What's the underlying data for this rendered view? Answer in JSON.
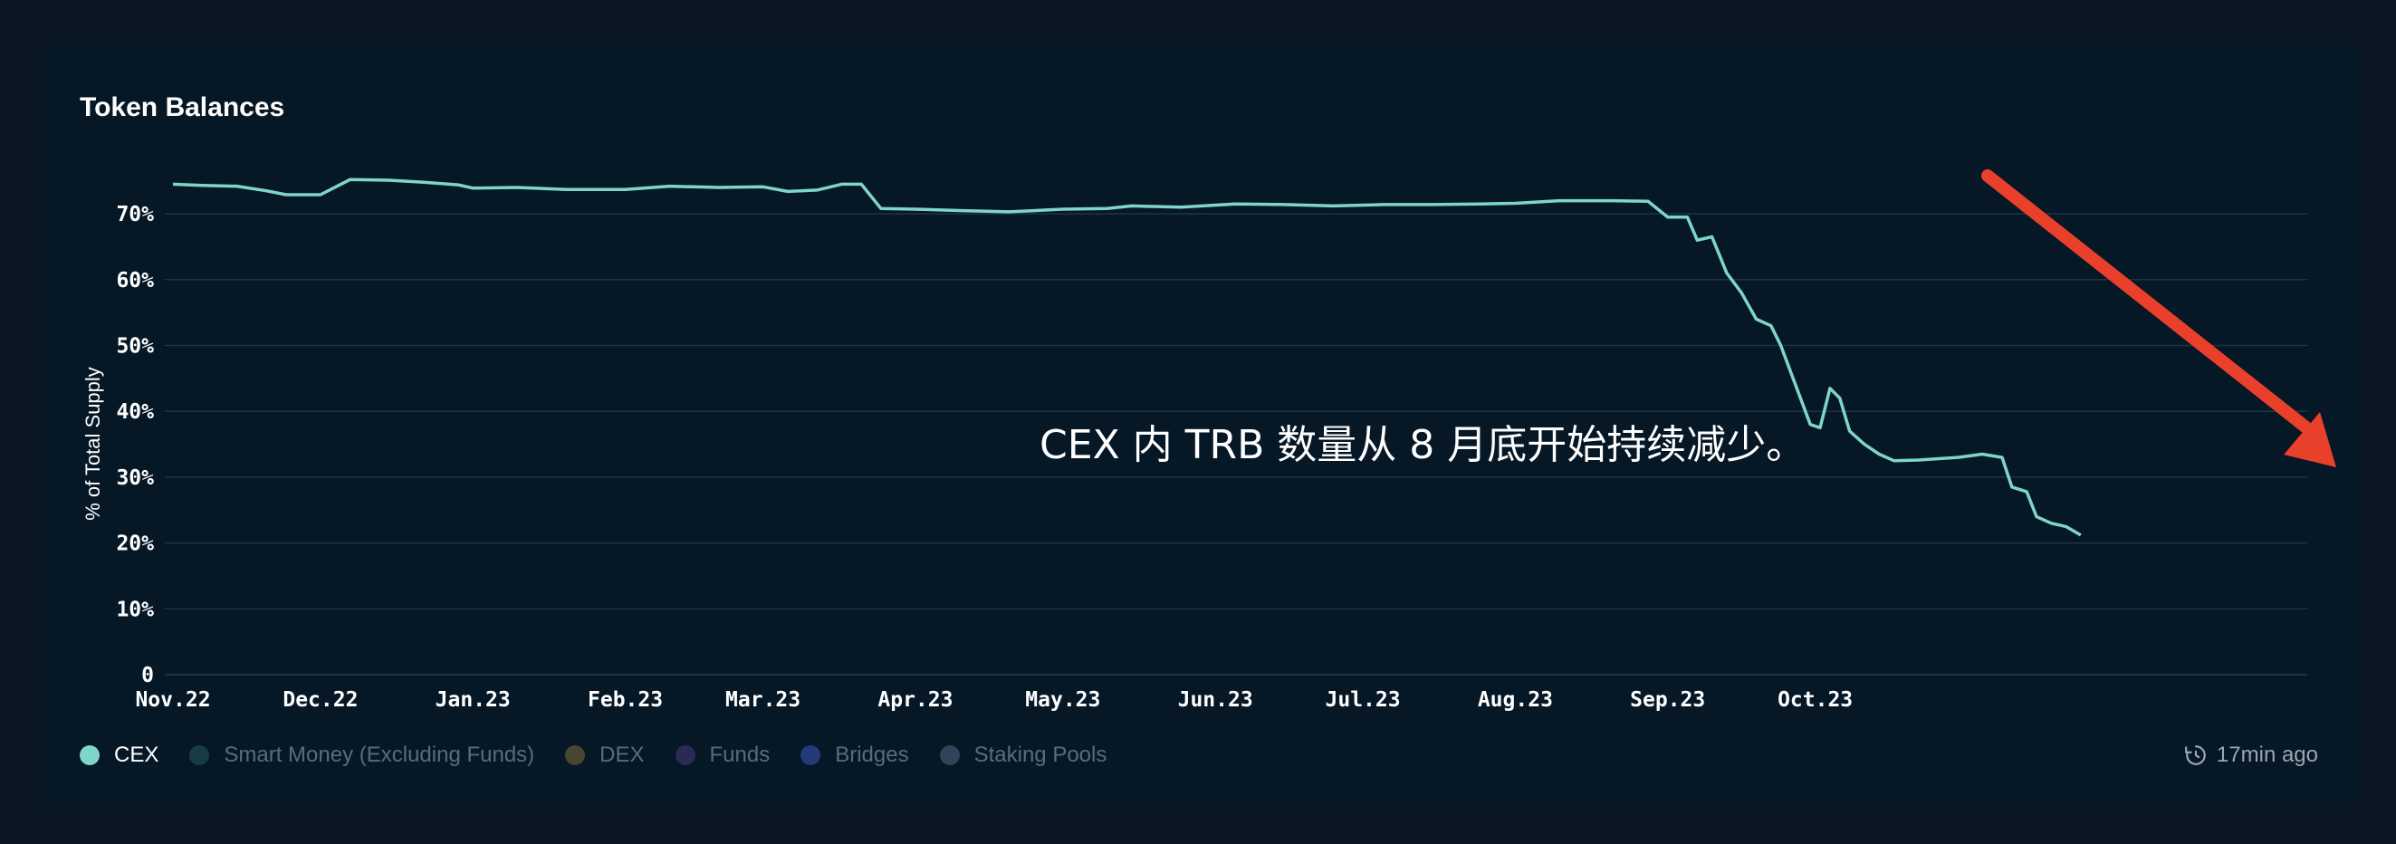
{
  "card": {
    "title": "Token Balances",
    "updated": "17min ago",
    "updated_icon": "clock-history-icon"
  },
  "annotation": "CEX 内 TRB 数量从 8 月底开始持续减少。",
  "legend": [
    {
      "label": "CEX",
      "color": "#7fd6c7",
      "active": true
    },
    {
      "label": "Smart Money (Excluding Funds)",
      "color": "#173c48",
      "active": false
    },
    {
      "label": "DEX",
      "color": "#4a4530",
      "active": false
    },
    {
      "label": "Funds",
      "color": "#2a2a55",
      "active": false
    },
    {
      "label": "Bridges",
      "color": "#253a7a",
      "active": false
    },
    {
      "label": "Staking Pools",
      "color": "#2f4459",
      "active": false
    }
  ],
  "colors": {
    "line": "#7fd6c7",
    "grid": "#1f3447",
    "arrow": "#e8402a"
  },
  "chart_data": {
    "type": "line",
    "ylabel": "% of Total Supply",
    "ylim": [
      0,
      75
    ],
    "yticks": [
      "0",
      "10%",
      "20%",
      "30%",
      "40%",
      "50%",
      "60%",
      "70%"
    ],
    "xticks": [
      "Nov.22",
      "Dec.22",
      "Jan.23",
      "Feb.23",
      "Mar.23",
      "Apr.23",
      "May.23",
      "Jun.23",
      "Jul.23",
      "Aug.23",
      "Sep.23",
      "Oct.23"
    ],
    "grid": true,
    "series": [
      {
        "name": "CEX",
        "points": [
          [
            "2022-11-01",
            74.5
          ],
          [
            "2022-11-07",
            74.3
          ],
          [
            "2022-11-14",
            74.2
          ],
          [
            "2022-11-20",
            73.5
          ],
          [
            "2022-11-24",
            72.9
          ],
          [
            "2022-12-01",
            72.9
          ],
          [
            "2022-12-07",
            75.2
          ],
          [
            "2022-12-15",
            75.1
          ],
          [
            "2022-12-22",
            74.8
          ],
          [
            "2022-12-29",
            74.4
          ],
          [
            "2023-01-01",
            73.9
          ],
          [
            "2023-01-10",
            74.0
          ],
          [
            "2023-01-20",
            73.7
          ],
          [
            "2023-02-01",
            73.7
          ],
          [
            "2023-02-10",
            74.2
          ],
          [
            "2023-02-20",
            74.0
          ],
          [
            "2023-03-01",
            74.1
          ],
          [
            "2023-03-06",
            73.4
          ],
          [
            "2023-03-12",
            73.6
          ],
          [
            "2023-03-17",
            74.5
          ],
          [
            "2023-03-21",
            74.5
          ],
          [
            "2023-03-25",
            70.8
          ],
          [
            "2023-04-01",
            70.7
          ],
          [
            "2023-04-10",
            70.5
          ],
          [
            "2023-04-20",
            70.3
          ],
          [
            "2023-05-01",
            70.7
          ],
          [
            "2023-05-10",
            70.8
          ],
          [
            "2023-05-15",
            71.2
          ],
          [
            "2023-05-25",
            71.0
          ],
          [
            "2023-06-05",
            71.5
          ],
          [
            "2023-06-15",
            71.4
          ],
          [
            "2023-06-25",
            71.2
          ],
          [
            "2023-07-05",
            71.4
          ],
          [
            "2023-07-15",
            71.4
          ],
          [
            "2023-07-25",
            71.5
          ],
          [
            "2023-08-01",
            71.6
          ],
          [
            "2023-08-10",
            72.0
          ],
          [
            "2023-08-20",
            72.0
          ],
          [
            "2023-08-28",
            71.9
          ],
          [
            "2023-09-01",
            69.5
          ],
          [
            "2023-09-05",
            69.5
          ],
          [
            "2023-09-07",
            66.0
          ],
          [
            "2023-09-10",
            66.5
          ],
          [
            "2023-09-13",
            61.0
          ],
          [
            "2023-09-16",
            58.0
          ],
          [
            "2023-09-19",
            54.0
          ],
          [
            "2023-09-22",
            53.0
          ],
          [
            "2023-09-24",
            50.0
          ],
          [
            "2023-09-27",
            44.0
          ],
          [
            "2023-09-30",
            38.0
          ],
          [
            "2023-10-02",
            37.5
          ],
          [
            "2023-10-04",
            43.5
          ],
          [
            "2023-10-06",
            42.0
          ],
          [
            "2023-10-08",
            37.0
          ],
          [
            "2023-10-11",
            35.0
          ],
          [
            "2023-10-14",
            33.5
          ],
          [
            "2023-10-17",
            32.5
          ],
          [
            "2023-10-22",
            32.6
          ],
          [
            "2023-10-30",
            33.0
          ],
          [
            "2023-11-04",
            33.5
          ],
          [
            "2023-11-08",
            33.0
          ],
          [
            "2023-11-10",
            28.5
          ],
          [
            "2023-11-13",
            27.8
          ],
          [
            "2023-11-15",
            24.0
          ],
          [
            "2023-11-18",
            23.0
          ],
          [
            "2023-11-21",
            22.5
          ],
          [
            "2023-11-24",
            21.2
          ]
        ]
      }
    ]
  }
}
